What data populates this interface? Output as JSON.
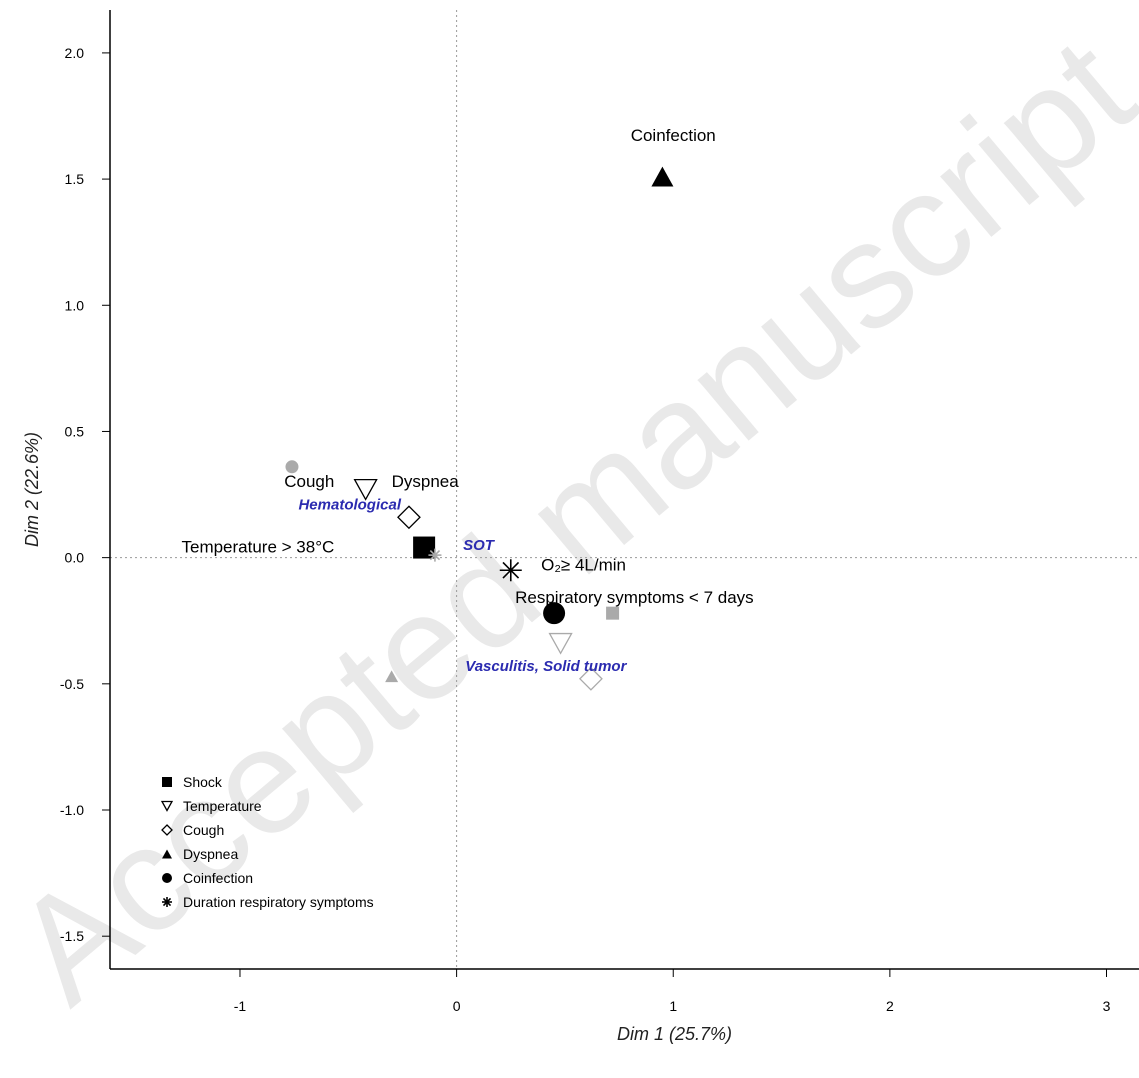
{
  "chart_data": {
    "type": "scatter",
    "xlabel": "Dim 1 (25.7%)",
    "ylabel": "Dim 2 (22.6%)",
    "xlim": [
      -1.6,
      3.15
    ],
    "ylim": [
      -1.63,
      2.17
    ],
    "xticks": [
      -1,
      0,
      1,
      2,
      3
    ],
    "yticks": [
      2.0,
      1.5,
      1.0,
      0.5,
      0.0,
      -0.5,
      -1.0,
      -1.5
    ],
    "xtick_labels": [
      "-1",
      "0",
      "1",
      "2",
      "3"
    ],
    "ytick_labels": [
      "2.0",
      "1.5",
      "1.0",
      "0.5",
      "0.0",
      "-0.5",
      "-1.0",
      "-1.5"
    ],
    "reference_lines": {
      "x": 0,
      "y": 0,
      "style": "dotted"
    },
    "points": [
      {
        "shape": "square",
        "color": "#000000",
        "size": "large",
        "x": -0.15,
        "y": 0.04
      },
      {
        "shape": "square",
        "color": "#aaaaaa",
        "size": "small",
        "x": 0.72,
        "y": -0.22
      },
      {
        "shape": "tri-down",
        "color": "#000000",
        "size": "large",
        "x": -0.42,
        "y": 0.27
      },
      {
        "shape": "tri-down",
        "color": "#aaaaaa",
        "size": "large",
        "x": 0.48,
        "y": -0.34
      },
      {
        "shape": "diamond",
        "color": "#000000",
        "size": "large",
        "x": -0.22,
        "y": 0.16
      },
      {
        "shape": "diamond",
        "color": "#aaaaaa",
        "size": "large",
        "x": 0.62,
        "y": -0.48
      },
      {
        "shape": "tri-up",
        "color": "#000000",
        "size": "large",
        "x": 0.95,
        "y": 1.51
      },
      {
        "shape": "tri-up",
        "color": "#aaaaaa",
        "size": "small",
        "x": -0.3,
        "y": -0.47
      },
      {
        "shape": "circle",
        "color": "#000000",
        "size": "large",
        "x": 0.45,
        "y": -0.22
      },
      {
        "shape": "circle",
        "color": "#aaaaaa",
        "size": "small",
        "x": -0.76,
        "y": 0.36
      },
      {
        "shape": "asterisk",
        "color": "#000000",
        "size": "large",
        "x": 0.25,
        "y": -0.05
      },
      {
        "shape": "asterisk",
        "color": "#aaaaaa",
        "size": "small",
        "x": -0.1,
        "y": 0.01
      }
    ],
    "annotations": [
      {
        "text": "Coinfection",
        "x": 1.0,
        "y": 1.65,
        "anchor": "middle",
        "color": "#000000",
        "style": "normal"
      },
      {
        "text": "Cough",
        "x": -0.68,
        "y": 0.28,
        "anchor": "middle",
        "color": "#000000",
        "style": "normal"
      },
      {
        "text": "Dyspnea",
        "x": -0.3,
        "y": 0.28,
        "anchor": "start",
        "color": "#000000",
        "style": "normal"
      },
      {
        "text": "Temperature > 38°C",
        "x": -1.27,
        "y": 0.02,
        "anchor": "start",
        "color": "#000000",
        "style": "normal"
      },
      {
        "text": "O₂≥ 4L/min",
        "x": 0.39,
        "y": -0.05,
        "anchor": "start",
        "color": "#000000",
        "style": "normal"
      },
      {
        "text": "Respiratory symptoms < 7 days",
        "x": 0.27,
        "y": -0.18,
        "anchor": "start",
        "color": "#000000",
        "style": "normal"
      },
      {
        "text": "Hematological",
        "x": -0.73,
        "y": 0.19,
        "anchor": "start",
        "color": "#2b2bb0",
        "style": "italic-bold"
      },
      {
        "text": "SOT",
        "x": 0.03,
        "y": 0.03,
        "anchor": "start",
        "color": "#2b2bb0",
        "style": "italic-bold"
      },
      {
        "text": "Vasculitis, Solid tumor",
        "x": 0.04,
        "y": -0.45,
        "anchor": "start",
        "color": "#2b2bb0",
        "style": "italic-bold"
      }
    ],
    "legend": {
      "placement": "bottom-left",
      "entries": [
        {
          "label": "Shock",
          "shape": "square"
        },
        {
          "label": "Temperature",
          "shape": "tri-down"
        },
        {
          "label": "Cough",
          "shape": "diamond"
        },
        {
          "label": "Dyspnea",
          "shape": "tri-up"
        },
        {
          "label": "Coinfection",
          "shape": "circle"
        },
        {
          "label": "Duration respiratory symptoms",
          "shape": "asterisk"
        }
      ]
    }
  },
  "watermark": {
    "text": "Accepted manuscript",
    "color": "#e9e9e9"
  }
}
